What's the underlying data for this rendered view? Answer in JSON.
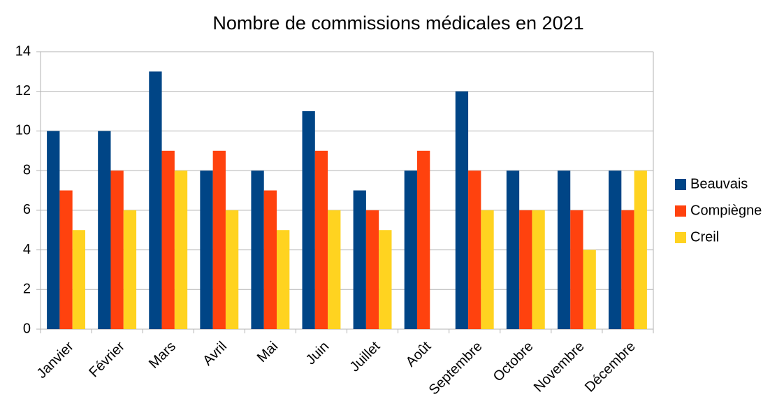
{
  "chart_data": {
    "type": "bar",
    "title": "Nombre de commissions médicales en 2021",
    "categories": [
      "Janvier",
      "Février",
      "Mars",
      "Avril",
      "Mai",
      "Juin",
      "Juillet",
      "Août",
      "Septembre",
      "Octobre",
      "Novembre",
      "Décembre"
    ],
    "series": [
      {
        "name": "Beauvais",
        "color": "#004586",
        "values": [
          10,
          10,
          13,
          8,
          8,
          11,
          7,
          8,
          12,
          8,
          8,
          8
        ]
      },
      {
        "name": "Compiègne",
        "color": "#ff420e",
        "values": [
          7,
          8,
          9,
          9,
          7,
          9,
          6,
          9,
          8,
          6,
          6,
          6
        ]
      },
      {
        "name": "Creil",
        "color": "#ffd320",
        "values": [
          5,
          6,
          8,
          6,
          5,
          6,
          5,
          0,
          6,
          6,
          4,
          8
        ]
      }
    ],
    "ylim": [
      0,
      14
    ],
    "yticks": [
      0,
      2,
      4,
      6,
      8,
      10,
      12,
      14
    ],
    "grid": true,
    "legend": "right"
  }
}
